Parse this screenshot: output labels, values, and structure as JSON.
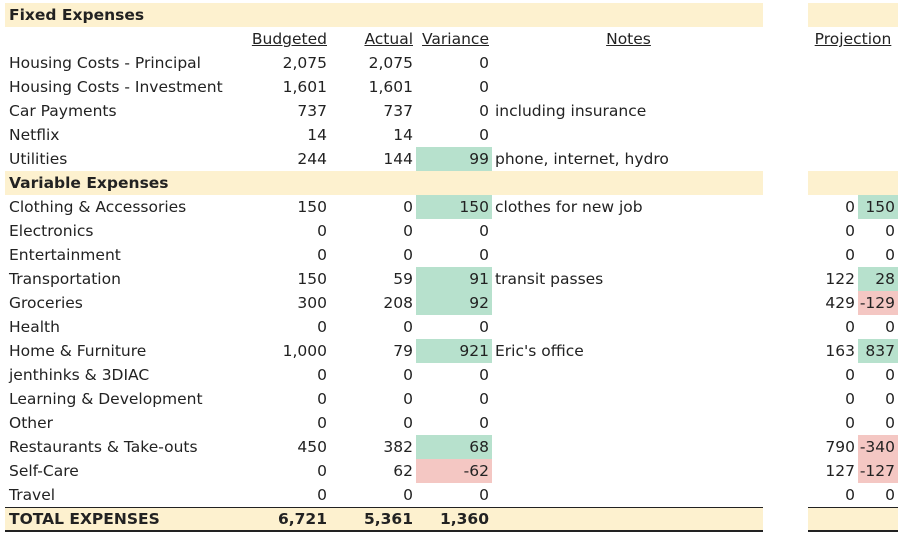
{
  "sections": {
    "fixed_title": "Fixed Expenses",
    "variable_title": "Variable Expenses",
    "total_label": "TOTAL EXPENSES"
  },
  "headers": {
    "budgeted": "Budgeted",
    "actual": "Actual",
    "variance": "Variance",
    "notes": "Notes",
    "projection": "Projection"
  },
  "colors": {
    "section_band": "#fdf1cf",
    "positive_variance": "#b7e1cd",
    "negative_variance": "#f4c7c3"
  },
  "fixed_rows": [
    {
      "label": "Housing Costs - Principal",
      "budgeted": "2,075",
      "actual": "2,075",
      "variance": "0",
      "note": ""
    },
    {
      "label": "Housing Costs - Investment",
      "budgeted": "1,601",
      "actual": "1,601",
      "variance": "0",
      "note": ""
    },
    {
      "label": "Car Payments",
      "budgeted": "737",
      "actual": "737",
      "variance": "0",
      "note": "including insurance"
    },
    {
      "label": "Netflix",
      "budgeted": "14",
      "actual": "14",
      "variance": "0",
      "note": ""
    },
    {
      "label": "Utilities",
      "budgeted": "244",
      "actual": "144",
      "variance": "99",
      "note": "phone, internet, hydro"
    }
  ],
  "variable_rows": [
    {
      "label": "Clothing & Accessories",
      "budgeted": "150",
      "actual": "0",
      "variance": "150",
      "note": "clothes for new job",
      "proj1": "0",
      "proj2": "150"
    },
    {
      "label": "Electronics",
      "budgeted": "0",
      "actual": "0",
      "variance": "0",
      "note": "",
      "proj1": "0",
      "proj2": "0"
    },
    {
      "label": "Entertainment",
      "budgeted": "0",
      "actual": "0",
      "variance": "0",
      "note": "",
      "proj1": "0",
      "proj2": "0"
    },
    {
      "label": "Transportation",
      "budgeted": "150",
      "actual": "59",
      "variance": "91",
      "note": "transit passes",
      "proj1": "122",
      "proj2": "28"
    },
    {
      "label": "Groceries",
      "budgeted": "300",
      "actual": "208",
      "variance": "92",
      "note": "",
      "proj1": "429",
      "proj2": "-129"
    },
    {
      "label": "Health",
      "budgeted": "0",
      "actual": "0",
      "variance": "0",
      "note": "",
      "proj1": "0",
      "proj2": "0"
    },
    {
      "label": "Home & Furniture",
      "budgeted": "1,000",
      "actual": "79",
      "variance": "921",
      "note": "Eric's office",
      "proj1": "163",
      "proj2": "837"
    },
    {
      "label": "jenthinks & 3DIAC",
      "budgeted": "0",
      "actual": "0",
      "variance": "0",
      "note": "",
      "proj1": "0",
      "proj2": "0"
    },
    {
      "label": "Learning & Development",
      "budgeted": "0",
      "actual": "0",
      "variance": "0",
      "note": "",
      "proj1": "0",
      "proj2": "0"
    },
    {
      "label": "Other",
      "budgeted": "0",
      "actual": "0",
      "variance": "0",
      "note": "",
      "proj1": "0",
      "proj2": "0"
    },
    {
      "label": "Restaurants & Take-outs",
      "budgeted": "450",
      "actual": "382",
      "variance": "68",
      "note": "",
      "proj1": "790",
      "proj2": "-340"
    },
    {
      "label": "Self-Care",
      "budgeted": "0",
      "actual": "62",
      "variance": "-62",
      "note": "",
      "proj1": "127",
      "proj2": "-127"
    },
    {
      "label": "Travel",
      "budgeted": "0",
      "actual": "0",
      "variance": "0",
      "note": "",
      "proj1": "0",
      "proj2": "0"
    }
  ],
  "totals": {
    "budgeted": "6,721",
    "actual": "5,361",
    "variance": "1,360"
  }
}
